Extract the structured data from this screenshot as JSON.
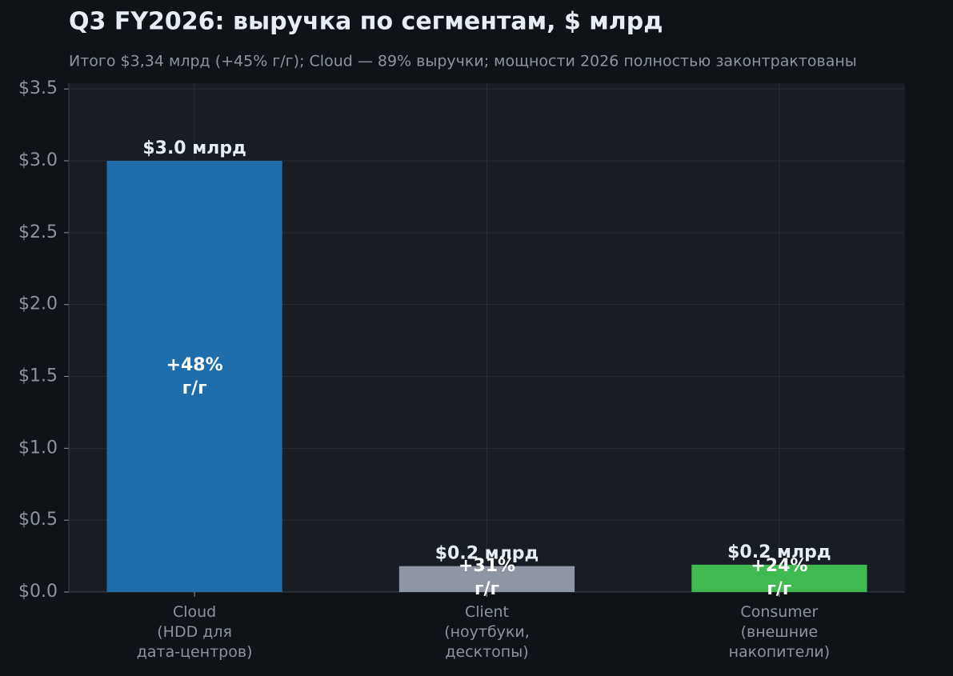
{
  "chart_data": {
    "type": "bar",
    "title": "Q3 FY2026: выручка по сегментам, $ млрд",
    "subtitle": "Итого $3,34 млрд (+45% г/г); Cloud — 89% выручки; мощности 2026 полностью законтрактованы",
    "categories": [
      "Cloud\n(HDD для\nдата-центров)",
      "Client\n(ноутбуки,\nдесктопы)",
      "Consumer\n(внешние\nнакопители)"
    ],
    "values": [
      3.0,
      0.18,
      0.19
    ],
    "value_labels": [
      "$3.0 млрд",
      "$0.2 млрд",
      "$0.2 млрд"
    ],
    "growth_labels": [
      "+48%\nг/г",
      "+31%\nг/г",
      "+24%\nг/г"
    ],
    "colors": [
      "#1f6eab",
      "#8e96a3",
      "#3fb950"
    ],
    "ylim": [
      0,
      3.54
    ],
    "yticks": [
      {
        "value": 0,
        "label": "$0.0"
      },
      {
        "value": 0.5,
        "label": "$0.5"
      },
      {
        "value": 1.0,
        "label": "$1.0"
      },
      {
        "value": 1.5,
        "label": "$1.5"
      },
      {
        "value": 2.0,
        "label": "$2.0"
      },
      {
        "value": 2.5,
        "label": "$2.5"
      },
      {
        "value": 3.0,
        "label": "$3.0"
      },
      {
        "value": 3.5,
        "label": "$3.5"
      }
    ],
    "grid": true
  }
}
